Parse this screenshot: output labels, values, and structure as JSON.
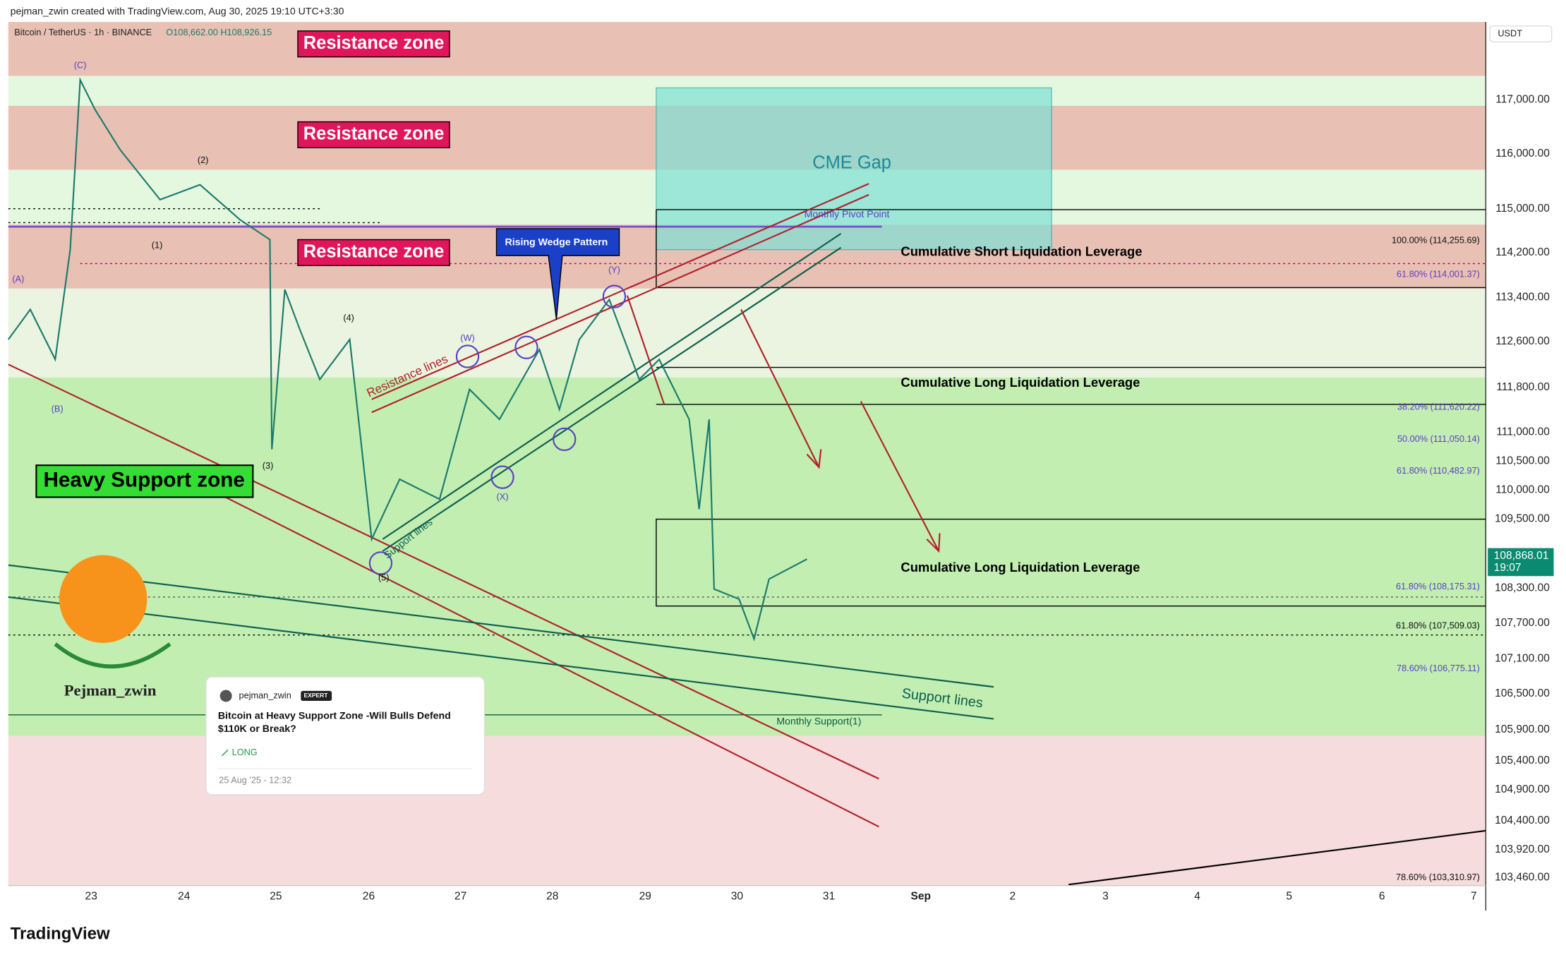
{
  "header": {
    "credit": "pejman_zwin created with TradingView.com, Aug 30, 2025 19:10 UTC+3:30",
    "symbol": "Bitcoin / TetherUS · 1h · BINANCE",
    "ohlc": "O108,662.00 H108,926.15",
    "currency": "USDT"
  },
  "price_axis": [
    "117,000.00",
    "116,000.00",
    "115,000.00",
    "114,200.00",
    "113,400.00",
    "112,600.00",
    "111,800.00",
    "111,000.00",
    "110,500.00",
    "110,000.00",
    "109,500.00",
    "108,300.00",
    "107,700.00",
    "107,100.00",
    "106,500.00",
    "105,900.00",
    "105,400.00",
    "104,900.00",
    "104,400.00",
    "103,920.00",
    "103,460.00"
  ],
  "current_price": {
    "price": "108,868.01",
    "countdown": "19:07"
  },
  "time_axis": [
    "23",
    "24",
    "25",
    "26",
    "27",
    "28",
    "29",
    "30",
    "31",
    "Sep",
    "2",
    "3",
    "4",
    "5",
    "6",
    "7"
  ],
  "annotations": {
    "resistance_zones": [
      "Resistance zone",
      "Resistance zone",
      "Resistance zone"
    ],
    "heavy_support": "Heavy Support zone",
    "cme_gap": "CME Gap",
    "monthly_pivot": "Monthly Pivot Point",
    "short_liq": "Cumulative Short Liquidation Leverage",
    "long_liq": [
      "Cumulative Long Liquidation Leverage",
      "Cumulative Long Liquidation Leverage"
    ],
    "rising_wedge": "Rising Wedge Pattern",
    "resistance_lines": "Resistance lines",
    "support_lines": [
      "Support lines",
      "Support lines"
    ],
    "monthly_support": "Monthly Support(1)",
    "author": "Pejman_zwin"
  },
  "fib_levels": [
    "100.00% (114,255.69)",
    "61.80% (114,001.37)",
    "38.20% (111,620.22)",
    "50.00% (111,050.14)",
    "61.80% (110,482.97)",
    "61.80% (108,175.31)",
    "61.80% (107,509.03)",
    "78.60% (106,775.11)",
    "78.60% (103,310.97)"
  ],
  "wave_labels": [
    "(C)",
    "(2)",
    "(1)",
    "(A)",
    "(B)",
    "(4)",
    "(3)",
    "(5)",
    "(W)",
    "(X)",
    "(Y)"
  ],
  "idea_card": {
    "user": "pejman_zwin",
    "badge": "EXPERT",
    "title": "Bitcoin at Heavy Support Zone -Will Bulls Defend $110K or Break?",
    "direction": "LONG",
    "date": "25 Aug '25 - 12:32"
  },
  "footer": {
    "logo": "TradingView"
  }
}
